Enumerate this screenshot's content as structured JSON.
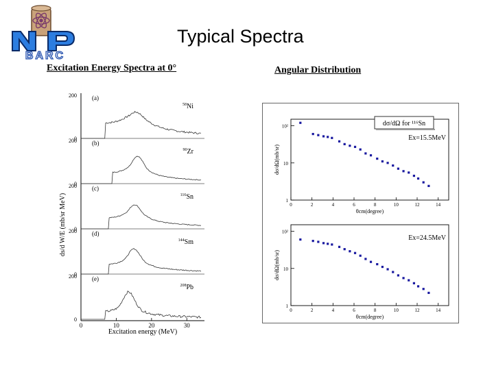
{
  "slide": {
    "title": "Typical Spectra",
    "left_heading": "Excitation Energy Spectra at 0°",
    "right_heading": "Angular  Distribution",
    "logo_text": "BARC"
  },
  "chart_data": [
    {
      "type": "line",
      "title": "Excitation Energy Spectra at 0°",
      "xlabel": "Excitation energy (MeV)",
      "ylabel": "ds/d W/E (mb/sr MeV)",
      "xlim": [
        0,
        35
      ],
      "ylim": [
        0,
        200
      ],
      "xticks": [
        "0",
        "10",
        "20",
        "30"
      ],
      "ytick_labels": [
        "200",
        "0"
      ],
      "panels": [
        {
          "label": "(a)",
          "target_mass": "58",
          "target_symbol": "Ni",
          "peak_energy": 15.5,
          "peak_value": 120,
          "width": 4.5,
          "background": 55,
          "threshold": 7,
          "noise": 8
        },
        {
          "label": "(b)",
          "target_mass": "90",
          "target_symbol": "Zr",
          "peak_energy": 16.0,
          "peak_value": 125,
          "width": 3.0,
          "background": 40,
          "threshold": 9,
          "noise": 4
        },
        {
          "label": "(c)",
          "target_mass": "116",
          "target_symbol": "Sn",
          "peak_energy": 15.2,
          "peak_value": 110,
          "width": 3.2,
          "background": 40,
          "threshold": 8,
          "noise": 4
        },
        {
          "label": "(d)",
          "target_mass": "144",
          "target_symbol": "Sm",
          "peak_energy": 15.0,
          "peak_value": 115,
          "width": 3.0,
          "background": 35,
          "threshold": 8,
          "noise": 5
        },
        {
          "label": "(e)",
          "target_mass": "208",
          "target_symbol": "Pb",
          "peak_energy": 13.5,
          "peak_value": 125,
          "width": 2.6,
          "background": 25,
          "threshold": 7,
          "noise": 10
        }
      ]
    },
    {
      "type": "scatter",
      "title": "dσ/dΩ for ¹¹⁶Sn",
      "legend_title": "dσ/dΩ for ¹¹⁶Sn",
      "yscale": "log",
      "xlim": [
        0,
        15
      ],
      "ylim": [
        1,
        150
      ],
      "xticks": [
        "0",
        "2",
        "4",
        "6",
        "8",
        "10",
        "12",
        "14"
      ],
      "yticks": [
        {
          "value": 100,
          "label": "10²"
        },
        {
          "value": 10,
          "label": "10"
        },
        {
          "value": 1,
          "label": "1"
        }
      ],
      "panels": [
        {
          "annotation": "Ex=15.5MeV",
          "xlabel": "θcm(degree)",
          "ylabel": "dσ/dΩ(mb/sr)",
          "x": [
            0.9,
            2.1,
            2.6,
            3.1,
            3.5,
            3.9,
            4.6,
            5.1,
            5.6,
            6.1,
            6.6,
            7.1,
            7.6,
            8.2,
            8.7,
            9.2,
            9.7,
            10.2,
            10.7,
            11.2,
            11.7,
            12.1,
            12.6,
            13.1
          ],
          "y": [
            120,
            60,
            56,
            52,
            50,
            47,
            38,
            32,
            29,
            27,
            23,
            18,
            16,
            13,
            11,
            10,
            8.5,
            7,
            6,
            5.5,
            4.5,
            3.8,
            3.0,
            2.4
          ]
        },
        {
          "annotation": "Ex=24.5MeV",
          "xlabel": "θcm(degree)",
          "ylabel": "dσ/dΩ(mb/sr)",
          "x": [
            0.9,
            2.1,
            2.6,
            3.1,
            3.5,
            3.9,
            4.6,
            5.1,
            5.6,
            6.1,
            6.6,
            7.1,
            7.6,
            8.2,
            8.7,
            9.2,
            9.7,
            10.2,
            10.7,
            11.2,
            11.7,
            12.1,
            12.6,
            13.1
          ],
          "y": [
            60,
            55,
            52,
            48,
            46,
            44,
            38,
            33,
            29,
            26,
            22,
            18,
            15,
            13,
            11,
            9.5,
            8,
            6.5,
            5.5,
            4.8,
            4.0,
            3.3,
            2.8,
            2.2
          ]
        }
      ]
    }
  ]
}
